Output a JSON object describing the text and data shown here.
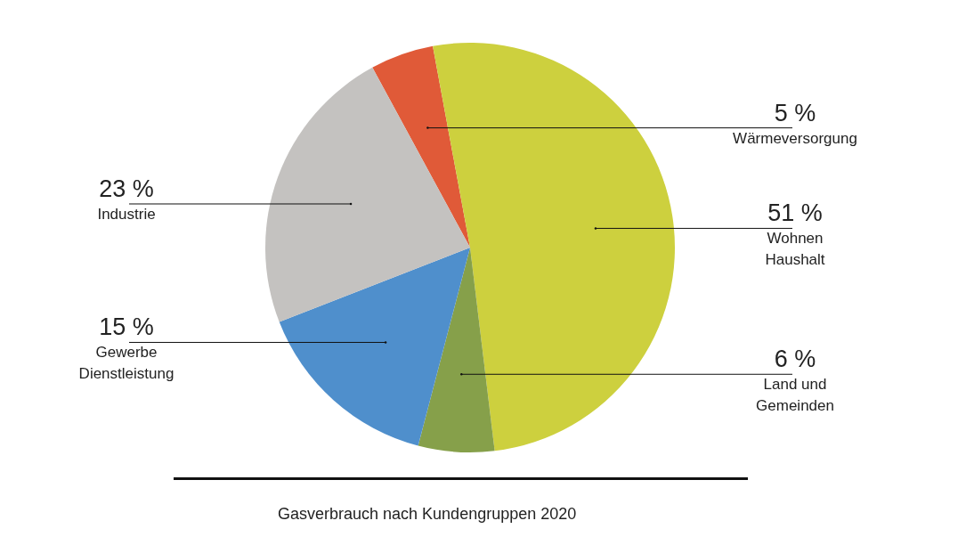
{
  "chart_data": {
    "type": "pie",
    "title": "Gasverbrauch nach Kundengruppen 2020",
    "categories": [
      "Wärmeversorgung",
      "Wohnen\nHaushalt",
      "Land und\nGemeinden",
      "Gewerbe\nDienstleistung",
      "Industrie"
    ],
    "values": [
      5,
      51,
      6,
      15,
      23
    ],
    "colors": [
      "#e05a38",
      "#cdd03e",
      "#86a04a",
      "#4f8fcc",
      "#c4c2c0"
    ],
    "value_labels": [
      "5 %",
      "51 %",
      "6 %",
      "15 %",
      "23 %"
    ]
  }
}
